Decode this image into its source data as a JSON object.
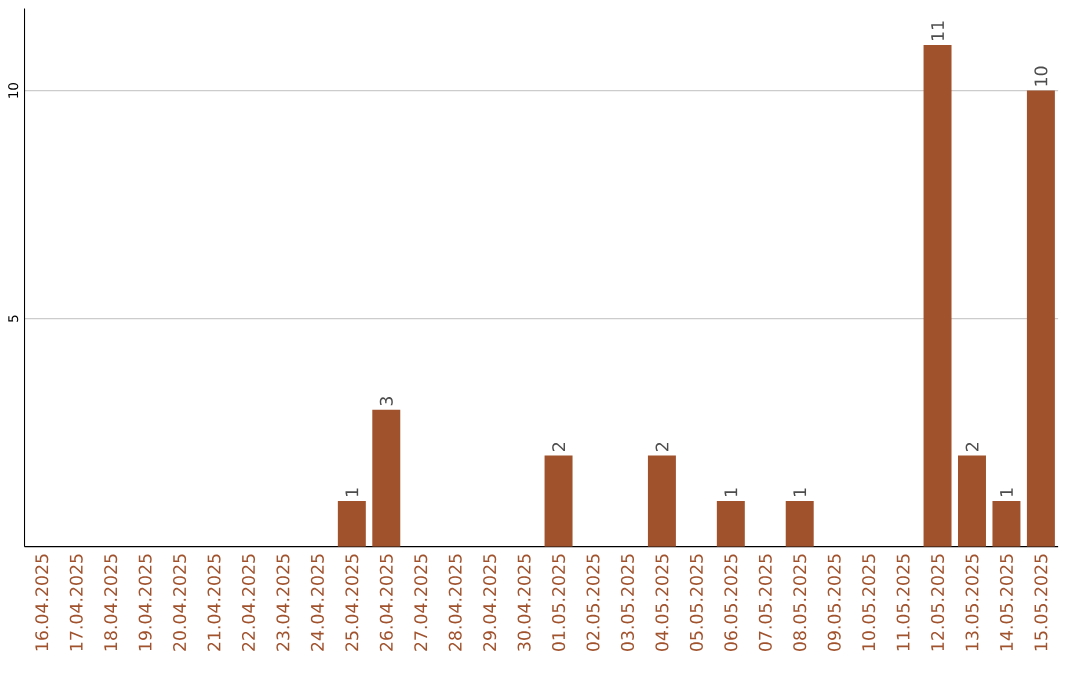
{
  "chart_data": {
    "type": "bar",
    "categories": [
      "16.04.2025",
      "17.04.2025",
      "18.04.2025",
      "19.04.2025",
      "20.04.2025",
      "21.04.2025",
      "22.04.2025",
      "23.04.2025",
      "24.04.2025",
      "25.04.2025",
      "26.04.2025",
      "27.04.2025",
      "28.04.2025",
      "29.04.2025",
      "30.04.2025",
      "01.05.2025",
      "02.05.2025",
      "03.05.2025",
      "04.05.2025",
      "05.05.2025",
      "06.05.2025",
      "07.05.2025",
      "08.05.2025",
      "09.05.2025",
      "10.05.2025",
      "11.05.2025",
      "12.05.2025",
      "13.05.2025",
      "14.05.2025",
      "15.05.2025"
    ],
    "values": [
      0,
      0,
      0,
      0,
      0,
      0,
      0,
      0,
      0,
      1,
      3,
      0,
      0,
      0,
      0,
      2,
      0,
      0,
      2,
      0,
      1,
      0,
      1,
      0,
      0,
      0,
      11,
      2,
      1,
      10
    ],
    "value_labels": [
      null,
      null,
      null,
      null,
      null,
      null,
      null,
      null,
      null,
      "1",
      "3",
      null,
      null,
      null,
      null,
      "2",
      null,
      null,
      "2",
      null,
      "1",
      null,
      "1",
      null,
      null,
      null,
      "11",
      "2",
      "1",
      "10"
    ],
    "color": "#a0522d",
    "ylim": [
      0,
      11.8
    ],
    "yticks": [
      5,
      10
    ],
    "grid": "y"
  }
}
